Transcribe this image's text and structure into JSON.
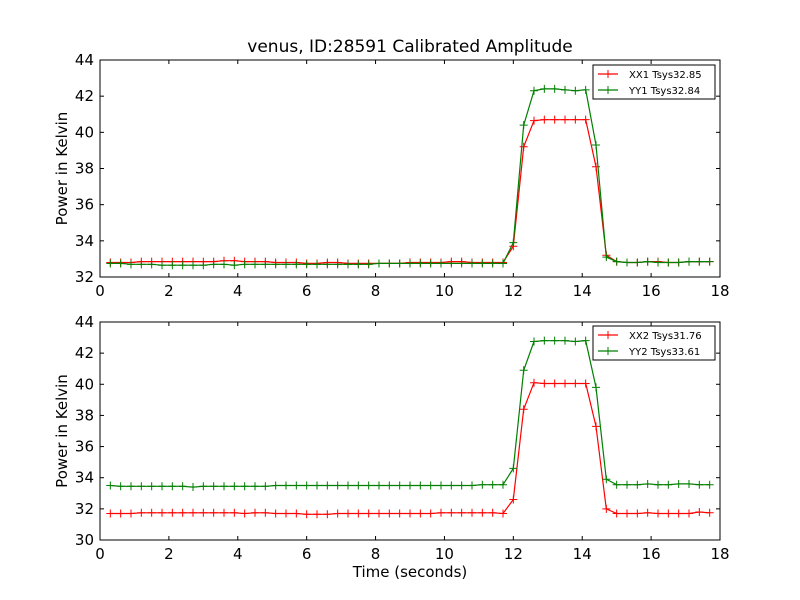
{
  "figure_title": "venus, ID:28591 Calibrated Amplitude",
  "chart_data": [
    {
      "type": "line",
      "title": "venus, ID:28591 Calibrated Amplitude",
      "xlabel": "",
      "ylabel": "Power in Kelvin",
      "xlim": [
        0,
        18
      ],
      "ylim": [
        32,
        44
      ],
      "x_ticks": [
        0,
        2,
        4,
        6,
        8,
        10,
        12,
        14,
        16,
        18
      ],
      "y_ticks": [
        32,
        34,
        36,
        38,
        40,
        42,
        44
      ],
      "grid": false,
      "legend_position": "top-right",
      "x": [
        0.3,
        0.6,
        0.9,
        1.2,
        1.5,
        1.8,
        2.1,
        2.4,
        2.7,
        3.0,
        3.3,
        3.6,
        3.9,
        4.2,
        4.5,
        4.8,
        5.1,
        5.4,
        5.7,
        6.0,
        6.3,
        6.6,
        6.9,
        7.2,
        7.5,
        7.8,
        8.1,
        8.4,
        8.7,
        9.0,
        9.3,
        9.6,
        9.9,
        10.2,
        10.5,
        10.8,
        11.1,
        11.4,
        11.7,
        12.0,
        12.3,
        12.6,
        12.9,
        13.2,
        13.5,
        13.8,
        14.1,
        14.4,
        14.7,
        15.0,
        15.3,
        15.6,
        15.9,
        16.2,
        16.5,
        16.8,
        17.1,
        17.4,
        17.7
      ],
      "series": [
        {
          "name": "XX1 Tsys32.85",
          "color": "#ff0000",
          "values": [
            32.8,
            32.8,
            32.8,
            32.85,
            32.85,
            32.85,
            32.85,
            32.85,
            32.85,
            32.85,
            32.85,
            32.9,
            32.9,
            32.85,
            32.85,
            32.85,
            32.8,
            32.8,
            32.8,
            32.75,
            32.75,
            32.8,
            32.8,
            32.75,
            32.75,
            32.75,
            32.75,
            32.75,
            32.75,
            32.8,
            32.8,
            32.8,
            32.8,
            32.85,
            32.85,
            32.8,
            32.8,
            32.8,
            32.8,
            33.7,
            39.2,
            40.65,
            40.7,
            40.7,
            40.7,
            40.7,
            40.7,
            38.1,
            33.2,
            32.85,
            32.8,
            32.8,
            32.85,
            32.85,
            32.8,
            32.8,
            32.85,
            32.85,
            32.85
          ]
        },
        {
          "name": "YY1 Tsys32.84",
          "color": "#007f00",
          "values": [
            32.75,
            32.75,
            32.7,
            32.7,
            32.7,
            32.65,
            32.65,
            32.65,
            32.65,
            32.65,
            32.7,
            32.7,
            32.65,
            32.7,
            32.7,
            32.7,
            32.7,
            32.7,
            32.7,
            32.7,
            32.7,
            32.7,
            32.7,
            32.7,
            32.7,
            32.7,
            32.75,
            32.75,
            32.75,
            32.75,
            32.75,
            32.75,
            32.75,
            32.75,
            32.75,
            32.75,
            32.75,
            32.75,
            32.75,
            33.9,
            40.4,
            42.3,
            42.4,
            42.4,
            42.35,
            42.3,
            42.35,
            39.3,
            33.1,
            32.85,
            32.8,
            32.8,
            32.85,
            32.8,
            32.8,
            32.8,
            32.85,
            32.85,
            32.85
          ]
        }
      ]
    },
    {
      "type": "line",
      "title": "",
      "xlabel": "Time (seconds)",
      "ylabel": "Power in Kelvin",
      "xlim": [
        0,
        18
      ],
      "ylim": [
        30,
        44
      ],
      "x_ticks": [
        0,
        2,
        4,
        6,
        8,
        10,
        12,
        14,
        16,
        18
      ],
      "y_ticks": [
        30,
        32,
        34,
        36,
        38,
        40,
        42,
        44
      ],
      "grid": false,
      "legend_position": "top-right",
      "x": [
        0.3,
        0.6,
        0.9,
        1.2,
        1.5,
        1.8,
        2.1,
        2.4,
        2.7,
        3.0,
        3.3,
        3.6,
        3.9,
        4.2,
        4.5,
        4.8,
        5.1,
        5.4,
        5.7,
        6.0,
        6.3,
        6.6,
        6.9,
        7.2,
        7.5,
        7.8,
        8.1,
        8.4,
        8.7,
        9.0,
        9.3,
        9.6,
        9.9,
        10.2,
        10.5,
        10.8,
        11.1,
        11.4,
        11.7,
        12.0,
        12.3,
        12.6,
        12.9,
        13.2,
        13.5,
        13.8,
        14.1,
        14.4,
        14.7,
        15.0,
        15.3,
        15.6,
        15.9,
        16.2,
        16.5,
        16.8,
        17.1,
        17.4,
        17.7
      ],
      "series": [
        {
          "name": "XX2 Tsys31.76",
          "color": "#ff0000",
          "values": [
            31.7,
            31.7,
            31.7,
            31.75,
            31.75,
            31.75,
            31.75,
            31.75,
            31.75,
            31.75,
            31.75,
            31.75,
            31.75,
            31.7,
            31.75,
            31.75,
            31.7,
            31.7,
            31.7,
            31.65,
            31.65,
            31.65,
            31.7,
            31.7,
            31.7,
            31.7,
            31.7,
            31.7,
            31.7,
            31.7,
            31.7,
            31.7,
            31.75,
            31.75,
            31.75,
            31.75,
            31.75,
            31.75,
            31.7,
            32.6,
            38.4,
            40.1,
            40.05,
            40.05,
            40.05,
            40.05,
            40.05,
            37.3,
            32.0,
            31.7,
            31.7,
            31.7,
            31.75,
            31.7,
            31.7,
            31.7,
            31.7,
            31.8,
            31.75
          ]
        },
        {
          "name": "YY2 Tsys33.61",
          "color": "#007f00",
          "values": [
            33.5,
            33.45,
            33.45,
            33.45,
            33.45,
            33.45,
            33.45,
            33.45,
            33.4,
            33.45,
            33.45,
            33.45,
            33.45,
            33.45,
            33.45,
            33.45,
            33.5,
            33.5,
            33.5,
            33.5,
            33.5,
            33.5,
            33.5,
            33.5,
            33.5,
            33.5,
            33.5,
            33.5,
            33.5,
            33.5,
            33.5,
            33.5,
            33.5,
            33.5,
            33.5,
            33.5,
            33.55,
            33.55,
            33.55,
            34.6,
            40.9,
            42.75,
            42.8,
            42.8,
            42.8,
            42.75,
            42.8,
            39.8,
            33.9,
            33.55,
            33.55,
            33.55,
            33.6,
            33.55,
            33.55,
            33.6,
            33.6,
            33.55,
            33.55
          ]
        }
      ]
    }
  ]
}
